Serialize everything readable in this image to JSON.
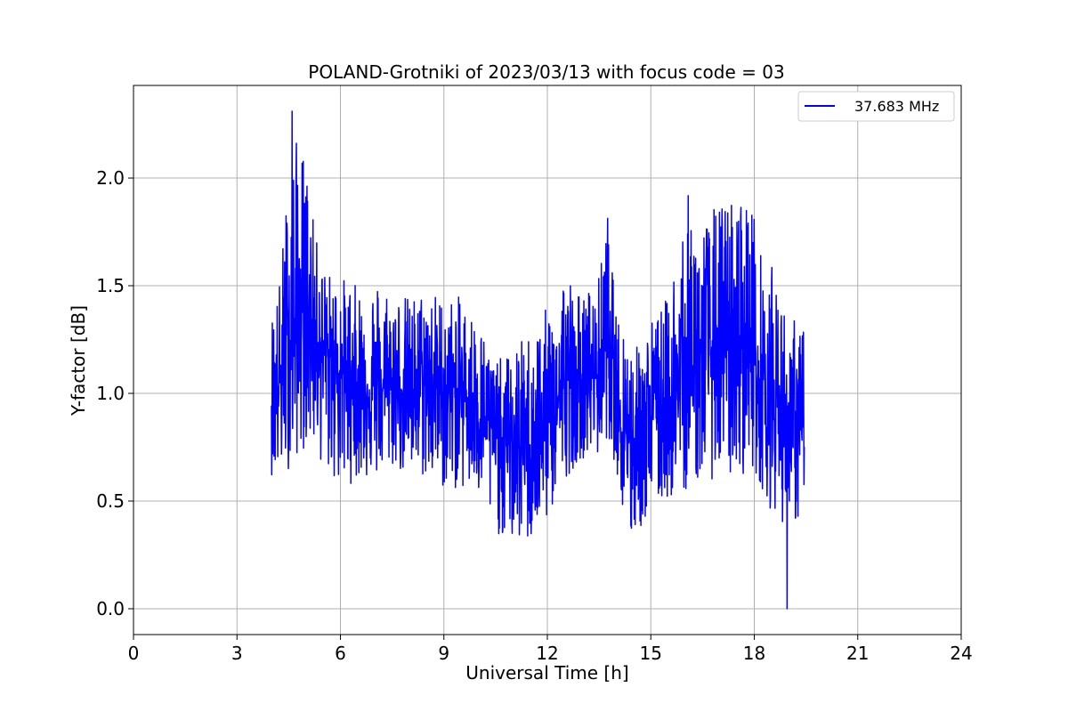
{
  "chart_data": {
    "type": "line",
    "title": "POLAND-Grotniki of 2023/03/13 with focus code = 03",
    "xlabel": "Universal Time [h]",
    "ylabel": "Y-factor [dB]",
    "xlim": [
      0,
      24
    ],
    "ylim": [
      -0.12,
      2.43
    ],
    "x_ticks": [
      0,
      3,
      6,
      9,
      12,
      15,
      18,
      21,
      24
    ],
    "y_ticks": [
      0.0,
      0.5,
      1.0,
      1.5,
      2.0
    ],
    "y_tick_labels": [
      "0.0",
      "0.5",
      "1.0",
      "1.5",
      "2.0"
    ],
    "grid": true,
    "legend_position": "top-right",
    "colors": {
      "series": "#0000ff",
      "grid": "#b0b0b0",
      "axes": "#000000"
    },
    "series": [
      {
        "name": "37.683 MHz",
        "x": [
          4.0,
          4.25,
          4.5,
          4.75,
          5.0,
          5.25,
          5.5,
          5.75,
          6.0,
          6.5,
          7.0,
          7.5,
          8.0,
          8.5,
          9.0,
          9.5,
          10.0,
          10.5,
          11.0,
          11.5,
          12.0,
          12.5,
          13.0,
          13.5,
          13.75,
          14.0,
          14.25,
          14.5,
          15.0,
          15.5,
          16.0,
          16.5,
          17.0,
          17.5,
          17.9,
          18.25,
          18.5,
          18.75,
          19.0,
          19.25,
          19.45
        ],
        "y_mean": [
          1.0,
          1.05,
          1.25,
          1.35,
          1.4,
          1.3,
          1.2,
          1.15,
          1.1,
          1.05,
          1.0,
          1.05,
          1.0,
          1.05,
          1.0,
          1.0,
          0.95,
          0.8,
          0.75,
          0.75,
          0.85,
          1.05,
          1.05,
          1.1,
          1.25,
          1.0,
          0.85,
          0.8,
          0.9,
          0.95,
          1.05,
          1.15,
          1.2,
          1.2,
          1.2,
          1.05,
          1.0,
          0.95,
          0.9,
          0.85,
          0.8
        ],
        "y_high": [
          1.38,
          1.55,
          2.05,
          2.2,
          2.1,
          1.75,
          1.6,
          1.55,
          1.55,
          1.5,
          1.55,
          1.5,
          1.45,
          1.5,
          1.45,
          1.45,
          1.35,
          1.15,
          1.2,
          1.3,
          1.4,
          1.6,
          1.45,
          1.55,
          1.85,
          1.35,
          1.35,
          1.2,
          1.35,
          1.45,
          1.95,
          1.8,
          1.9,
          1.92,
          1.95,
          1.6,
          1.6,
          1.45,
          1.35,
          1.35,
          1.3
        ],
        "y_low": [
          0.62,
          0.6,
          0.65,
          0.7,
          0.75,
          0.75,
          0.65,
          0.6,
          0.55,
          0.6,
          0.6,
          0.65,
          0.6,
          0.6,
          0.55,
          0.55,
          0.5,
          0.35,
          0.3,
          0.3,
          0.4,
          0.6,
          0.7,
          0.7,
          0.8,
          0.65,
          0.3,
          0.3,
          0.45,
          0.5,
          0.55,
          0.6,
          0.6,
          0.6,
          0.65,
          0.55,
          0.45,
          0.4,
          0.4,
          0.4,
          0.32
        ],
        "y_peak": 2.31,
        "y_peak_x": 4.6,
        "y_min": 0.0,
        "y_min_x": 18.95,
        "n_points": 1860
      }
    ]
  }
}
